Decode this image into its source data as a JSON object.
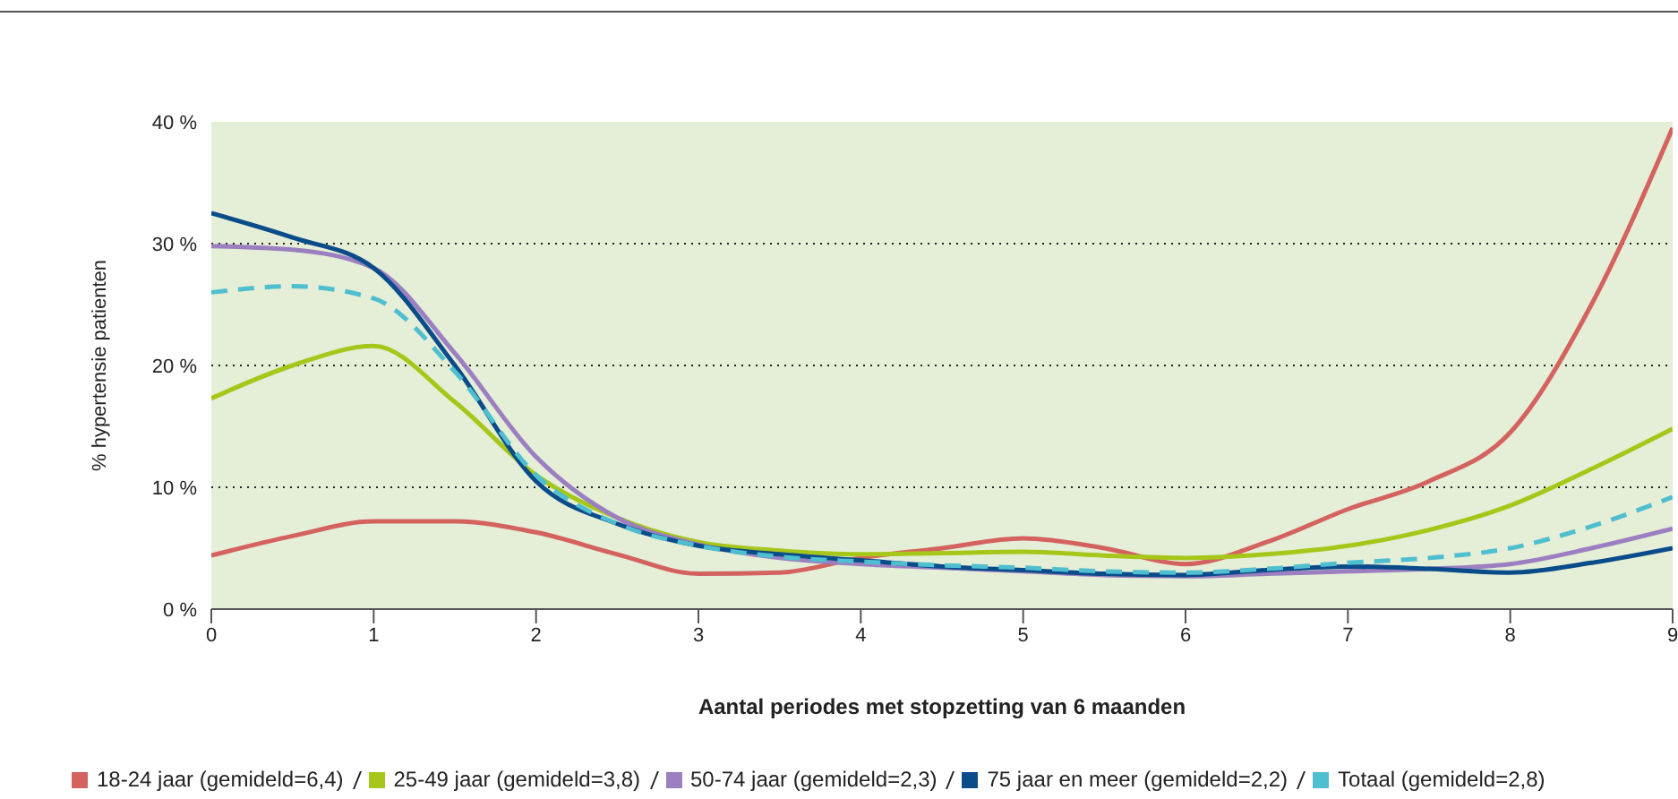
{
  "chart_data": {
    "type": "line",
    "xlabel": "Aantal periodes met stopzetting van 6 maanden",
    "ylabel": "% hypertensie patienten",
    "x": [
      0,
      0.5,
      1,
      1.5,
      2,
      2.5,
      3,
      3.5,
      4,
      4.5,
      5,
      5.5,
      6,
      6.5,
      7,
      7.5,
      8,
      8.5,
      9
    ],
    "series": [
      {
        "name": "18-24 jaar (gemideld=6,4)",
        "color": "#d4625f",
        "values": [
          4.4,
          6,
          7.2,
          7.2,
          6.3,
          4.5,
          2.9,
          3.0,
          4.2,
          5.0,
          5.8,
          5.0,
          3.7,
          5.5,
          8.2,
          10.5,
          14.5,
          25,
          39.5
        ]
      },
      {
        "name": "25-49 jaar (gemideld=3,8)",
        "color": "#a7c61a",
        "values": [
          17.3,
          20,
          21.6,
          17,
          11,
          7.5,
          5.5,
          4.8,
          4.5,
          4.6,
          4.7,
          4.4,
          4.2,
          4.5,
          5.2,
          6.5,
          8.5,
          11.5,
          14.8
        ]
      },
      {
        "name": "50-74 jaar (gemideld=2,3)",
        "color": "#9b7fc0",
        "values": [
          29.8,
          29.5,
          28,
          21,
          12.5,
          7.5,
          5.3,
          4.2,
          3.7,
          3.4,
          3.1,
          2.8,
          2.7,
          2.9,
          3.1,
          3.3,
          3.7,
          5,
          6.6
        ]
      },
      {
        "name": "75 jaar en meer (gemideld=2,2)",
        "color": "#0a4c8a",
        "values": [
          32.5,
          30.5,
          28,
          20,
          10.5,
          7,
          5.2,
          4.5,
          4.0,
          3.5,
          3.2,
          2.9,
          2.8,
          3.2,
          3.5,
          3.3,
          3.0,
          3.8,
          5.0
        ]
      },
      {
        "name": "Totaal (gemideld=2,8)",
        "color": "#4fbfd0",
        "line_style": "dashed",
        "values": [
          26,
          26.5,
          25.5,
          19.5,
          11,
          7,
          5.2,
          4.3,
          3.9,
          3.6,
          3.4,
          3.1,
          3.0,
          3.3,
          3.8,
          4.2,
          5.0,
          6.8,
          9.2
        ]
      }
    ],
    "xlim": [
      0,
      9
    ],
    "xticks": [
      0,
      1,
      2,
      3,
      4,
      5,
      6,
      7,
      8,
      9
    ],
    "ylim": [
      0,
      40
    ],
    "yticks": [
      {
        "value": 0,
        "label": "0 %"
      },
      {
        "value": 10,
        "label": "10 %"
      },
      {
        "value": 20,
        "label": "20 %"
      },
      {
        "value": 30,
        "label": "30 %"
      },
      {
        "value": 40,
        "label": "40 %"
      }
    ],
    "grid": "y",
    "legend": "bottom",
    "marker": "none",
    "line_style": "solid"
  }
}
